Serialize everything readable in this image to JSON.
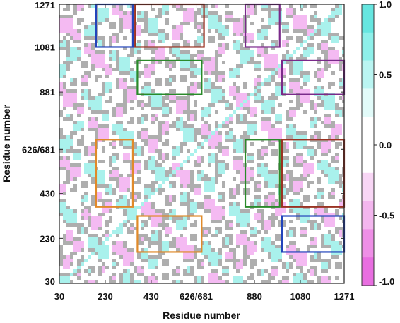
{
  "chart_data": {
    "type": "heatmap",
    "title": "",
    "xlabel": "Residue number",
    "ylabel": "Residue number",
    "x_tick_labels": [
      "30",
      "230",
      "430",
      "626/681",
      "880",
      "1080",
      "1271"
    ],
    "y_tick_labels": [
      "30",
      "230",
      "430",
      "626/681",
      "881",
      "1081",
      "1271"
    ],
    "x_tick_values": [
      30,
      230,
      430,
      626,
      880,
      1080,
      1271
    ],
    "y_tick_values": [
      30,
      230,
      430,
      626,
      881,
      1081,
      1271
    ],
    "xlim": [
      30,
      1271
    ],
    "ylim": [
      30,
      1271
    ],
    "value_range": [
      -1.0,
      1.0
    ],
    "colorbar": {
      "tick_labels": [
        "1.0",
        "0.5",
        "0.0",
        "-0.5",
        "-1.0"
      ],
      "tick_values": [
        1.0,
        0.5,
        0.0,
        -0.5,
        -1.0
      ],
      "colors_high_to_low": [
        "#66e6e0",
        "#8ef0ea",
        "#baf5f2",
        "#e2fbf9",
        "#ffffff",
        "#ffffff",
        "#f8d6f5",
        "#f3b6ee",
        "#ee8fe6",
        "#e86ee0"
      ]
    },
    "line_color": "#6b6b6b",
    "positive_fill": "#9aefe9",
    "negative_fill": "#f2aef0",
    "highlight_boxes": [
      {
        "color": "#2244bb",
        "x": [
          190,
          350
        ],
        "y": [
          1081,
          1271
        ]
      },
      {
        "color": "#9a3323",
        "x": [
          360,
          660
        ],
        "y": [
          1081,
          1271
        ]
      },
      {
        "color": "#7a2a8a",
        "x": [
          840,
          990
        ],
        "y": [
          1081,
          1271
        ]
      },
      {
        "color": "#2a8a2a",
        "x": [
          370,
          650
        ],
        "y": [
          870,
          1020
        ]
      },
      {
        "color": "#7a2a8a",
        "x": [
          1000,
          1271
        ],
        "y": [
          870,
          1020
        ]
      },
      {
        "color": "#e08a2a",
        "x": [
          190,
          350
        ],
        "y": [
          370,
          670
        ]
      },
      {
        "color": "#2a8a2a",
        "x": [
          840,
          990
        ],
        "y": [
          370,
          670
        ]
      },
      {
        "color": "#9a3323",
        "x": [
          1000,
          1271
        ],
        "y": [
          370,
          670
        ]
      },
      {
        "color": "#e08a2a",
        "x": [
          370,
          650
        ],
        "y": [
          170,
          330
        ]
      },
      {
        "color": "#2244bb",
        "x": [
          1000,
          1271
        ],
        "y": [
          170,
          330
        ]
      }
    ]
  }
}
